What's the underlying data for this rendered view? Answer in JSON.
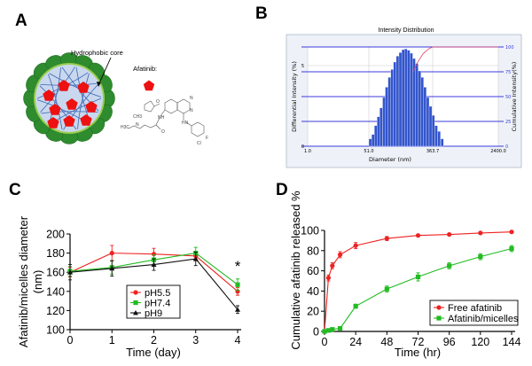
{
  "panels": {
    "a": "A",
    "b": "B",
    "c": "C",
    "d": "D"
  },
  "diagram_a": {
    "core_label": "Hydrophobic core",
    "drug_label": "Afatinib:",
    "atom_labels": [
      "H3C",
      "N",
      "CH3",
      "O",
      "NH",
      "HN",
      "N",
      "N",
      "F",
      "Cl",
      "O"
    ],
    "colors": {
      "shell": "#2e8b2e",
      "core": "#c9d8ee",
      "chains": "#3a66b5",
      "drug": "#ee1111"
    }
  },
  "chart_data": [
    {
      "type": "bar",
      "title": "Intensity Distribution",
      "xlabel": "Diameter (nm)",
      "ylabel": "Differential Intensity (%)",
      "y2label": "Cumulative Intensity(%)",
      "xscale": "log",
      "xticks": [
        "1.0",
        "51.0",
        "363.7",
        "2400.0"
      ],
      "xtick_values": [
        1,
        51,
        363.7,
        2400
      ],
      "yticks": [
        "0",
        "5"
      ],
      "y2ticks": [
        "0",
        "25",
        "50",
        "75",
        "100"
      ],
      "y2_values": [
        0,
        25,
        50,
        75,
        100
      ],
      "grid": true,
      "bar_color": "#3355cc",
      "cumulative_color": "#e0406a",
      "x": [
        53.2,
        57.9,
        63.0,
        68.5,
        74.5,
        81.1,
        88.2,
        96.0,
        104.4,
        113.6,
        123.6,
        134.5,
        146.3,
        159.2,
        173.2,
        188.5,
        205.0,
        223.1,
        242.7,
        264.1,
        287.3,
        312.6,
        340.1,
        370.0,
        402.6,
        438.0,
        476.6
      ],
      "values": [
        0.46,
        0.73,
        1.28,
        1.83,
        2.38,
        3.02,
        3.66,
        4.27,
        4.76,
        5.22,
        5.59,
        5.81,
        5.99,
        6.04,
        5.95,
        5.77,
        5.44,
        5.13,
        4.67,
        4.27,
        3.66,
        3.02,
        2.47,
        1.92,
        1.28,
        0.92,
        0.46
      ],
      "cumulative": {
        "x": [
          199,
          230,
          270,
          320,
          363.7,
          2400
        ],
        "y": [
          75,
          85,
          93,
          98,
          100,
          100
        ]
      }
    },
    {
      "type": "line",
      "xlabel": "Time (day)",
      "ylabel": "Afatinib/micelles diameter",
      "ylabel2": "(nm)",
      "xlim": [
        0,
        4
      ],
      "ylim": [
        100,
        200
      ],
      "xticks": [
        "0",
        "1",
        "2",
        "3",
        "4"
      ],
      "yticks": [
        "100",
        "120",
        "140",
        "160",
        "180",
        "200"
      ],
      "x": [
        0,
        1,
        2,
        3,
        4
      ],
      "annotation": "*",
      "legend": "center",
      "series": [
        {
          "name": "pH5.5",
          "color": "#ee2222",
          "marker": "circle",
          "values": [
            160,
            180,
            179,
            177,
            140
          ],
          "error": [
            5,
            8,
            6,
            5,
            4
          ]
        },
        {
          "name": "pH7.4",
          "color": "#22bb22",
          "marker": "square",
          "values": [
            161,
            165,
            173,
            180,
            147
          ],
          "error": [
            5,
            7,
            5,
            6,
            6
          ]
        },
        {
          "name": "pH9",
          "color": "#111111",
          "marker": "triangle",
          "values": [
            160,
            164,
            168,
            174,
            121
          ],
          "error": [
            8,
            8,
            6,
            7,
            4
          ]
        }
      ]
    },
    {
      "type": "line",
      "xlabel": "Time (hr)",
      "ylabel": "Cumulative afatinib released %",
      "xlim": [
        0,
        144
      ],
      "ylim": [
        0,
        100
      ],
      "xticks": [
        "0",
        "24",
        "48",
        "72",
        "96",
        "120",
        "144"
      ],
      "yticks": [
        "0",
        "20",
        "40",
        "60",
        "80",
        "100"
      ],
      "x": [
        0,
        3,
        6,
        12,
        24,
        48,
        72,
        96,
        120,
        144
      ],
      "legend": "bottom-right",
      "series": [
        {
          "name": "Free afatinib",
          "color": "#ee2222",
          "marker": "circle",
          "values": [
            0,
            53,
            65,
            76,
            85,
            92,
            95,
            96,
            97.5,
            98.5
          ],
          "error": [
            0,
            3,
            3,
            3,
            3,
            2,
            1,
            1,
            1,
            1
          ]
        },
        {
          "name": "Afatinib/micelles",
          "color": "#22bb22",
          "marker": "square",
          "values": [
            0,
            1,
            2,
            3,
            25,
            42,
            54,
            65,
            74,
            82
          ],
          "error": [
            0,
            1,
            1,
            1,
            2,
            3,
            4,
            3,
            3,
            3
          ]
        }
      ]
    }
  ]
}
